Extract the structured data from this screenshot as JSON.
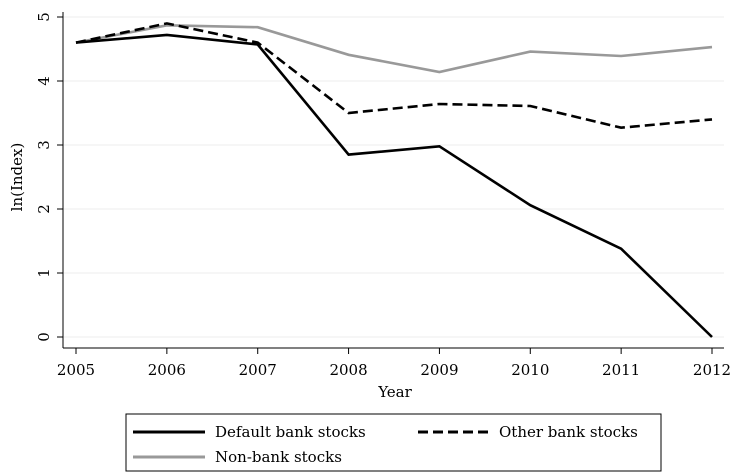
{
  "chart_data": {
    "type": "line",
    "title": "",
    "xlabel": "Year",
    "ylabel": "ln(Index)",
    "x": [
      2005,
      2006,
      2007,
      2008,
      2009,
      2010,
      2011,
      2012
    ],
    "x_ticks": [
      "2005",
      "2006",
      "2007",
      "2008",
      "2009",
      "2010",
      "2011",
      "2012"
    ],
    "y_ticks": [
      "0",
      "1",
      "2",
      "3",
      "4",
      "5"
    ],
    "xlim": [
      2005,
      2012
    ],
    "ylim": [
      0,
      5
    ],
    "grid": true,
    "legend_position": "bottom",
    "series": [
      {
        "name": "Default bank stocks",
        "values": [
          4.6,
          4.72,
          4.57,
          2.85,
          2.98,
          2.06,
          1.38,
          0.0
        ],
        "color": "#000000",
        "style": "solid"
      },
      {
        "name": "Other bank stocks",
        "values": [
          4.6,
          4.9,
          4.6,
          3.5,
          3.64,
          3.61,
          3.27,
          3.4
        ],
        "color": "#000000",
        "style": "dashed"
      },
      {
        "name": "Non-bank stocks",
        "values": [
          4.6,
          4.87,
          4.84,
          4.41,
          4.14,
          4.46,
          4.39,
          4.53
        ],
        "color": "#999999",
        "style": "solid"
      }
    ]
  }
}
